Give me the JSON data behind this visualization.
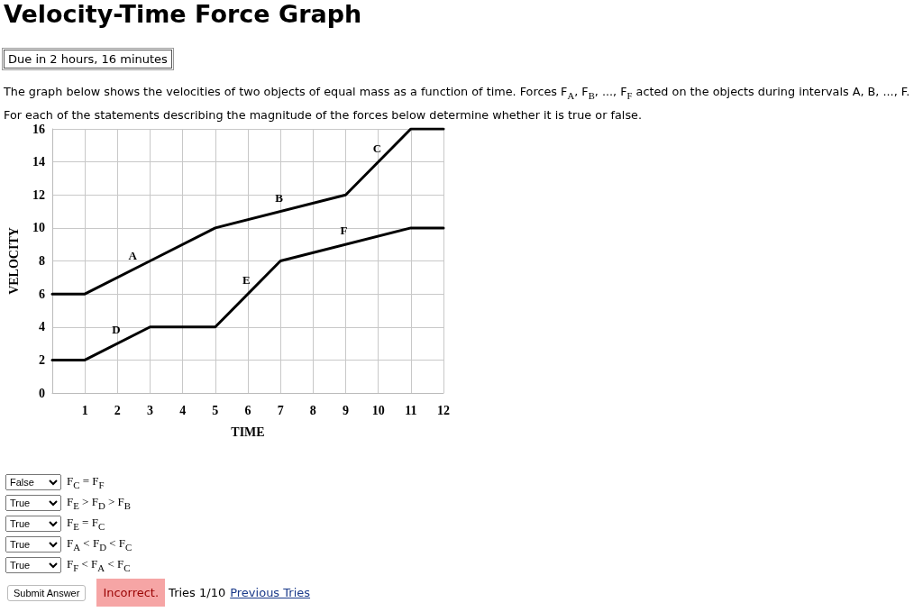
{
  "chart_data": {
    "type": "line",
    "title": "Velocity-Time Force Graph",
    "subtitle": "The graph below shows the velocities of two objects of equal mass as a function of time. Forces F$_{A}$, F$_{B}$, ..., F$_{F}$ acted on the objects during intervals A, B, ..., F. For each of the statements describing the magnitude of the forces below determine whether it is true or false.",
    "xlabel": "TIME",
    "ylabel": "VELOCITY",
    "series": [
      {
        "color": "#000000",
        "x": [
          0,
          1,
          3,
          5,
          9,
          11,
          12
        ],
        "values": [
          6,
          6,
          8,
          10,
          12,
          16,
          16
        ]
      },
      {
        "color": "#000000",
        "x": [
          0,
          1,
          3,
          5,
          7,
          11,
          12
        ],
        "values": [
          2,
          2,
          4,
          4,
          8,
          10,
          10
        ]
      }
    ],
    "xlim": [
      0,
      12
    ],
    "xticks": [
      1,
      2,
      3,
      4,
      5,
      6,
      7,
      8,
      9,
      10,
      11,
      12
    ],
    "ylim": [
      0,
      16
    ],
    "yticks": [
      0,
      2,
      4,
      6,
      8,
      10,
      12,
      14,
      16
    ],
    "grid": true,
    "marker": "none",
    "line_style": "solid",
    "annotations": [
      {
        "text": "A",
        "x": 2.5,
        "y": 7.5
      },
      {
        "text": "B",
        "x": 7,
        "y": 11
      },
      {
        "text": "C",
        "x": 10,
        "y": 14
      },
      {
        "text": "D",
        "x": 2,
        "y": 3
      },
      {
        "text": "E",
        "x": 6,
        "y": 6
      },
      {
        "text": "F",
        "x": 9,
        "y": 9
      },
      "Due in 2 hours, 16 minutes",
      "False",
      "F$_{C}$ = F$_{F}$",
      "True",
      "F$_{E}$ > F$_{D}$ > F$_{B}$",
      "True",
      "F$_{E}$ = F$_{C}$",
      "True",
      "F$_{A}$ < F$_{D}$ < F$_{C}$",
      "True",
      "F$_{F}$ < F$_{A}$ < F$_{C}$",
      "Submit Answer",
      "Incorrect.",
      "Tries 1/10",
      "Previous Tries"
    ]
  }
}
